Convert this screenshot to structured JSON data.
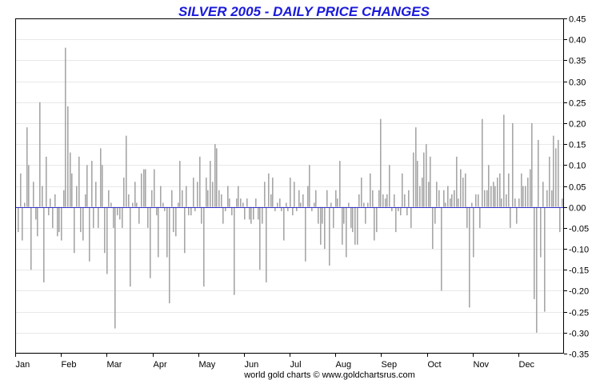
{
  "chart_data": {
    "type": "bar",
    "title": "SILVER 2005 - DAILY PRICE CHANGES",
    "credit": "world gold charts © www.goldchartsrus.com",
    "xlabel": "",
    "ylabel": "",
    "ylim": [
      -0.35,
      0.45
    ],
    "yticks": [
      "0.45",
      "0.40",
      "0.35",
      "0.30",
      "0.25",
      "0.20",
      "0.15",
      "0.10",
      "0.05",
      "0.00",
      "-0.05",
      "-0.10",
      "-0.15",
      "-0.20",
      "-0.25",
      "-0.30",
      "-0.35"
    ],
    "xticks": [
      "Jan",
      "Feb",
      "Mar",
      "Apr",
      "May",
      "Jun",
      "Jul",
      "Aug",
      "Sep",
      "Oct",
      "Nov",
      "Dec"
    ],
    "grid": true,
    "legend": "none",
    "colors": {
      "bar": "#a6a6a6",
      "zero_line": "#3333cc",
      "title": "#1a1adb",
      "grid": "#e8e8e8"
    },
    "series": [
      {
        "values": [
          -0.06,
          0.08,
          -0.08,
          0.01,
          0.19,
          0.1,
          -0.15,
          0.06,
          -0.03,
          -0.07,
          0.25,
          0.05,
          -0.18,
          0.12,
          -0.02,
          0.02,
          -0.05,
          0.03,
          -0.07,
          -0.06,
          -0.08,
          0.04,
          0.38,
          0.24,
          0.13,
          0.08,
          -0.11,
          0.05,
          0.12,
          -0.06,
          -0.08,
          0.03,
          0.1,
          -0.13,
          0.11,
          -0.05,
          0.06,
          -0.05,
          0.14,
          0.1,
          -0.11,
          -0.16,
          0.04,
          0.01,
          -0.05,
          -0.29,
          -0.02,
          -0.03,
          -0.05,
          0.07,
          0.17,
          0.03,
          -0.19,
          0.01,
          0.06,
          0.01,
          -0.04,
          0.08,
          0.09,
          0.09,
          -0.05,
          -0.17,
          0.04,
          0.09,
          -0.02,
          -0.12,
          0.05,
          0.01,
          -0.01,
          -0.12,
          -0.23,
          0.04,
          -0.06,
          -0.07,
          0.01,
          0.11,
          0.04,
          -0.11,
          0.05,
          -0.02,
          -0.02,
          0.07,
          -0.01,
          0.06,
          0.12,
          -0.04,
          -0.19,
          0.07,
          0.04,
          0.11,
          0.06,
          0.15,
          0.14,
          0.04,
          0.03,
          -0.04,
          -0.01,
          0.05,
          0.02,
          -0.02,
          -0.21,
          0.02,
          0.05,
          0.02,
          0.01,
          -0.03,
          0.02,
          -0.03,
          -0.04,
          -0.03,
          0.02,
          -0.03,
          -0.15,
          -0.04,
          0.06,
          -0.18,
          0.08,
          0.03,
          0.07,
          -0.01,
          0.01,
          0.02,
          -0.01,
          -0.08,
          0.01,
          -0.01,
          0.07,
          -0.02,
          0.06,
          -0.01,
          0.04,
          0.01,
          0.03,
          -0.13,
          0.05,
          0.1,
          -0.01,
          0.01,
          0.04,
          -0.04,
          -0.09,
          -0.04,
          -0.1,
          0.04,
          -0.14,
          0.01,
          -0.05,
          0.04,
          0.02,
          0.11,
          -0.09,
          -0.04,
          -0.12,
          0.01,
          -0.05,
          -0.06,
          -0.09,
          -0.09,
          0.03,
          0.07,
          0.01,
          -0.04,
          0.01,
          0.08,
          0.04,
          -0.08,
          -0.06,
          0.04,
          0.21,
          0.03,
          0.02,
          0.03,
          0.1,
          -0.01,
          0.03,
          -0.06,
          -0.01,
          -0.02,
          0.08,
          0.03,
          -0.02,
          0.04,
          -0.05,
          0.13,
          0.19,
          0.11,
          0.05,
          0.07,
          0.13,
          0.15,
          0.06,
          0.12,
          -0.1,
          -0.04,
          0.06,
          0.04,
          -0.2,
          0.04,
          0.01,
          0.05,
          0.02,
          0.03,
          0.04,
          0.12,
          0.02,
          0.09,
          0.07,
          0.08,
          -0.05,
          -0.24,
          0.01,
          -0.12,
          0.03,
          0.03,
          -0.05,
          0.21,
          0.04,
          0.04,
          0.1,
          0.05,
          0.06,
          0.05,
          0.07,
          0.08,
          0.02,
          0.22,
          0.03,
          0.08,
          -0.05,
          0.2,
          0.02,
          -0.04,
          0.02,
          0.08,
          0.05,
          0.05,
          0.07,
          0.09,
          0.2,
          -0.22,
          -0.3,
          0.16,
          -0.12,
          0.06,
          -0.25,
          0.04,
          0.12,
          0.04,
          0.17,
          0.14,
          0.16,
          -0.06,
          0.02
        ]
      }
    ]
  }
}
